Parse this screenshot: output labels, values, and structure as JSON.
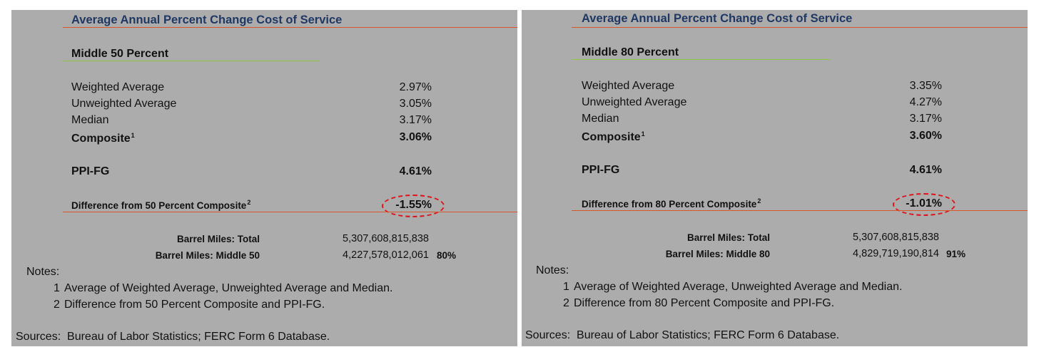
{
  "panels": [
    {
      "title": "Average Annual Percent Change Cost of Service",
      "subtitle": "Middle 50 Percent",
      "rows": [
        {
          "label": "Weighted Average",
          "value": "2.97%"
        },
        {
          "label": "Unweighted Average",
          "value": "3.05%"
        },
        {
          "label": "Median",
          "value": "3.17%"
        }
      ],
      "composite": {
        "label": "Composite",
        "sup": "1",
        "value": "3.06%"
      },
      "ppi": {
        "label": "PPI-FG",
        "value": "4.61%"
      },
      "difference": {
        "label": "Difference from 50 Percent Composite",
        "sup": "2",
        "value": "-1.55%"
      },
      "barrel_total": {
        "label": "Barrel Miles: Total",
        "value": "5,307,608,815,838"
      },
      "barrel_middle": {
        "label": "Barrel Miles: Middle 50",
        "value": "4,227,578,012,061",
        "pct": "80%"
      },
      "notes_heading": "Notes:",
      "notes": [
        {
          "num": "1",
          "text": "Average of Weighted Average, Unweighted Average and Median."
        },
        {
          "num": "2",
          "text": "Difference from 50 Percent Composite and PPI-FG."
        }
      ],
      "sources": "Sources:  Bureau of Labor Statistics; FERC Form 6 Database."
    },
    {
      "title": "Average Annual Percent Change Cost of Service",
      "subtitle": "Middle 80 Percent",
      "rows": [
        {
          "label": "Weighted Average",
          "value": "3.35%"
        },
        {
          "label": "Unweighted Average",
          "value": "4.27%"
        },
        {
          "label": "Median",
          "value": "3.17%"
        }
      ],
      "composite": {
        "label": "Composite",
        "sup": "1",
        "value": "3.60%"
      },
      "ppi": {
        "label": "PPI-FG",
        "value": "4.61%"
      },
      "difference": {
        "label": "Difference from 80 Percent Composite",
        "sup": "2",
        "value": "-1.01%"
      },
      "barrel_total": {
        "label": "Barrel Miles: Total",
        "value": "5,307,608,815,838"
      },
      "barrel_middle": {
        "label": "Barrel Miles: Middle 80",
        "value": "4,829,719,190,814",
        "pct": "91%"
      },
      "notes_heading": "Notes:",
      "notes": [
        {
          "num": "1",
          "text": "Average of Weighted Average, Unweighted Average and Median."
        },
        {
          "num": "2",
          "text": "Difference from 80 Percent Composite and PPI-FG."
        }
      ],
      "sources": "Sources:  Bureau of Labor Statistics; FERC Form 6 Database."
    }
  ],
  "colors": {
    "panel_bg": "#acacac",
    "title": "#1f3864",
    "rule_orange": "#d8572a",
    "rule_green": "#8dc63f",
    "highlight_oval": "#e0141b"
  }
}
